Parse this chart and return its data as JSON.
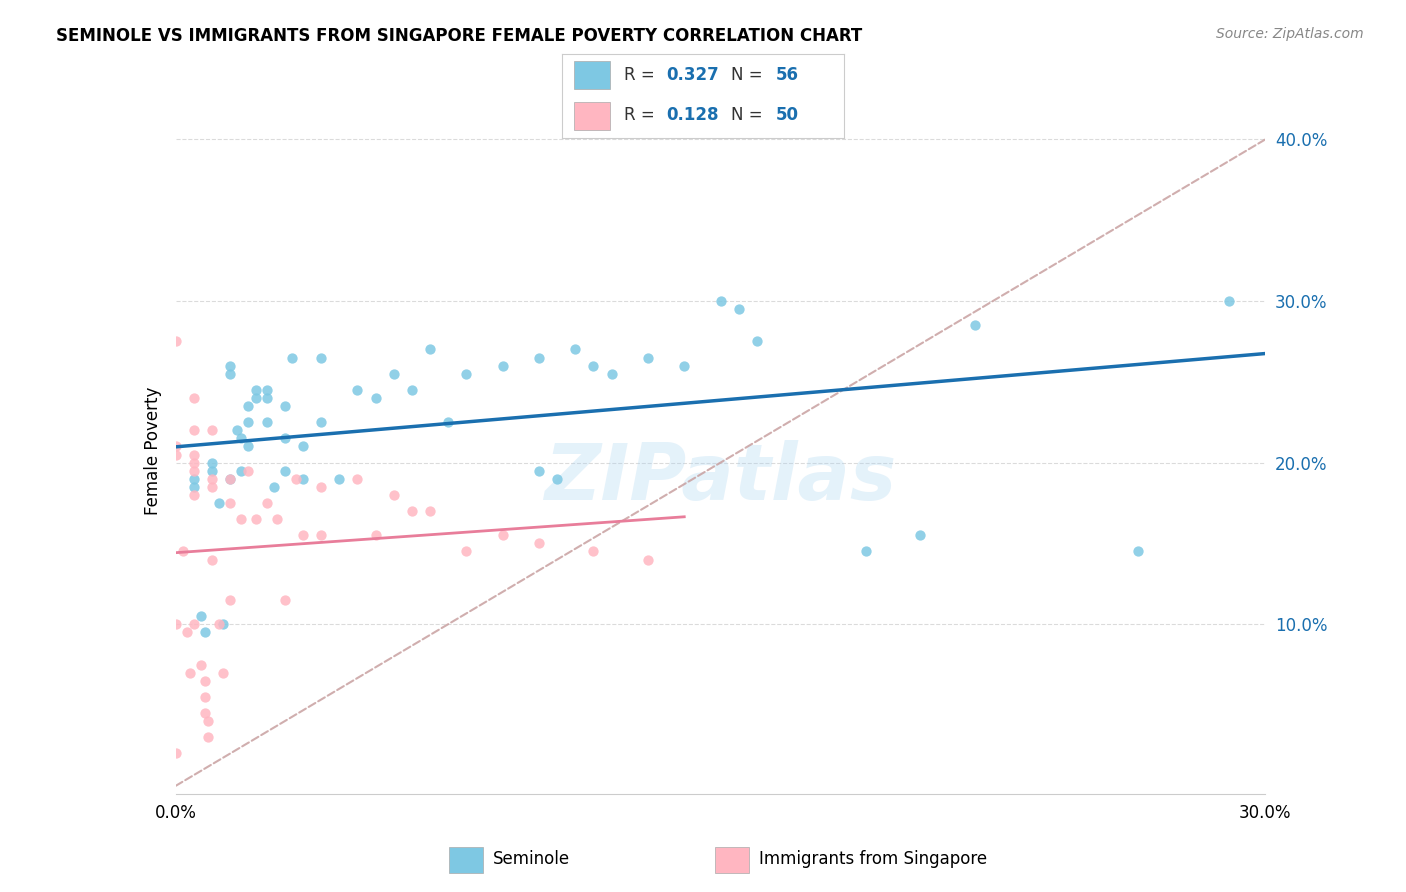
{
  "title": "SEMINOLE VS IMMIGRANTS FROM SINGAPORE FEMALE POVERTY CORRELATION CHART",
  "source": "Source: ZipAtlas.com",
  "ylabel": "Female Poverty",
  "xlim": [
    0.0,
    0.3
  ],
  "ylim": [
    -0.005,
    0.42
  ],
  "yticks": [
    0.1,
    0.2,
    0.3,
    0.4
  ],
  "ytick_labels": [
    "10.0%",
    "20.0%",
    "30.0%",
    "40.0%"
  ],
  "xticks": [
    0.0,
    0.05,
    0.1,
    0.15,
    0.2,
    0.25,
    0.3
  ],
  "xtick_labels": [
    "0.0%",
    "",
    "",
    "",
    "",
    "",
    "30.0%"
  ],
  "color_blue": "#7ec8e3",
  "color_pink": "#ffb6c1",
  "color_line_blue": "#1a6faf",
  "color_line_pink": "#e87d9a",
  "color_dashed": "#c8a0a0",
  "seminole_x": [
    0.005,
    0.005,
    0.007,
    0.008,
    0.01,
    0.01,
    0.012,
    0.013,
    0.015,
    0.015,
    0.015,
    0.017,
    0.018,
    0.018,
    0.02,
    0.02,
    0.02,
    0.022,
    0.022,
    0.025,
    0.025,
    0.025,
    0.027,
    0.03,
    0.03,
    0.03,
    0.032,
    0.035,
    0.035,
    0.04,
    0.04,
    0.045,
    0.05,
    0.055,
    0.06,
    0.065,
    0.07,
    0.075,
    0.08,
    0.09,
    0.1,
    0.1,
    0.105,
    0.11,
    0.115,
    0.12,
    0.13,
    0.14,
    0.15,
    0.155,
    0.16,
    0.19,
    0.205,
    0.22,
    0.265,
    0.29
  ],
  "seminole_y": [
    0.19,
    0.185,
    0.105,
    0.095,
    0.2,
    0.195,
    0.175,
    0.1,
    0.26,
    0.255,
    0.19,
    0.22,
    0.215,
    0.195,
    0.235,
    0.225,
    0.21,
    0.245,
    0.24,
    0.245,
    0.24,
    0.225,
    0.185,
    0.235,
    0.215,
    0.195,
    0.265,
    0.21,
    0.19,
    0.265,
    0.225,
    0.19,
    0.245,
    0.24,
    0.255,
    0.245,
    0.27,
    0.225,
    0.255,
    0.26,
    0.265,
    0.195,
    0.19,
    0.27,
    0.26,
    0.255,
    0.265,
    0.26,
    0.3,
    0.295,
    0.275,
    0.145,
    0.155,
    0.285,
    0.145,
    0.3
  ],
  "singapore_x": [
    0.0,
    0.0,
    0.0,
    0.0,
    0.0,
    0.002,
    0.003,
    0.004,
    0.005,
    0.005,
    0.005,
    0.005,
    0.005,
    0.005,
    0.005,
    0.007,
    0.008,
    0.008,
    0.008,
    0.009,
    0.009,
    0.01,
    0.01,
    0.01,
    0.01,
    0.012,
    0.013,
    0.015,
    0.015,
    0.015,
    0.018,
    0.02,
    0.022,
    0.025,
    0.028,
    0.03,
    0.033,
    0.035,
    0.04,
    0.04,
    0.05,
    0.055,
    0.06,
    0.065,
    0.07,
    0.08,
    0.09,
    0.1,
    0.115,
    0.13
  ],
  "singapore_y": [
    0.275,
    0.21,
    0.205,
    0.1,
    0.02,
    0.145,
    0.095,
    0.07,
    0.24,
    0.22,
    0.205,
    0.2,
    0.195,
    0.18,
    0.1,
    0.075,
    0.065,
    0.055,
    0.045,
    0.04,
    0.03,
    0.22,
    0.19,
    0.185,
    0.14,
    0.1,
    0.07,
    0.19,
    0.175,
    0.115,
    0.165,
    0.195,
    0.165,
    0.175,
    0.165,
    0.115,
    0.19,
    0.155,
    0.185,
    0.155,
    0.19,
    0.155,
    0.18,
    0.17,
    0.17,
    0.145,
    0.155,
    0.15,
    0.145,
    0.14
  ]
}
